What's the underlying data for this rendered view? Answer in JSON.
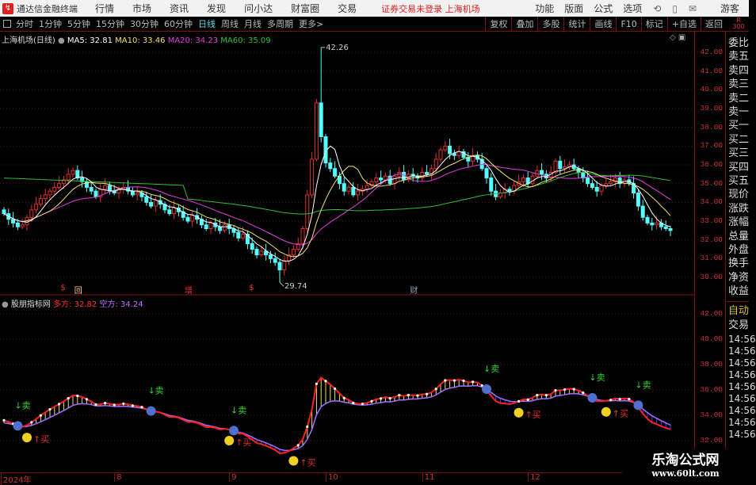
{
  "menubar": {
    "app_name": "通达信金融终端",
    "items": [
      "行情",
      "市场",
      "资讯",
      "发现",
      "问小达",
      "财富圈",
      "交易"
    ],
    "status": "证券交易未登录  上海机场",
    "right_items": [
      "功能",
      "版面",
      "公式",
      "选项"
    ],
    "user": "游客"
  },
  "periodbar": {
    "periods": [
      "分时",
      "1分钟",
      "5分钟",
      "15分钟",
      "30分钟",
      "60分钟",
      "日线",
      "周线",
      "月线",
      "多周期",
      "更多>"
    ],
    "active": "日线",
    "tools": [
      "复权",
      "叠加",
      "多股",
      "统计",
      "画线",
      "F10",
      "标记",
      "+自选",
      "返回"
    ],
    "r_label": "R",
    "r_value": "300"
  },
  "main_info": {
    "title": "上海机场(日线)",
    "ma5": "MA5: 32.81",
    "ma10": "MA10: 33.46",
    "ma20": "MA20: 34.23",
    "ma60": "MA60: 35.09"
  },
  "indicator_info": {
    "title": "股朋指标网",
    "duo": "多方: 32.82",
    "kong": "空方: 34.24"
  },
  "colors": {
    "up": "#e03030",
    "down": "#54ffff",
    "ma5": "#ffffff",
    "ma10": "#f0e070",
    "ma20": "#e040e0",
    "ma60": "#30c030",
    "duo": "#ff2020",
    "kong": "#a070ff",
    "grid": "#5a1010"
  },
  "event_markers": [
    {
      "text": "$",
      "index": 13
    },
    {
      "text": "回",
      "index": 16
    },
    {
      "text": "增",
      "index": 40
    },
    {
      "text": "$",
      "index": 54
    },
    {
      "text": "财",
      "index": 89
    }
  ],
  "right_panel": {
    "quote_labels": [
      "委比",
      "卖五",
      "卖四",
      "卖三",
      "卖二",
      "卖一",
      "买一",
      "买二",
      "买三",
      "买四",
      "买五",
      "现价",
      "涨跌",
      "涨幅",
      "总量",
      "外盘",
      "换手",
      "净资",
      "收益"
    ],
    "auto": "自动",
    "trade": "交易",
    "times": [
      "14:56",
      "14:56",
      "14:56",
      "14:56",
      "14:56",
      "14:56",
      "14:56",
      "14:56",
      "14:56"
    ]
  },
  "date_axis": [
    {
      "label": "2024年",
      "index": 0
    },
    {
      "label": "8",
      "index": 24
    },
    {
      "label": "9",
      "index": 49
    },
    {
      "label": "10",
      "index": 70
    },
    {
      "label": "11",
      "index": 91
    },
    {
      "label": "12",
      "index": 114
    }
  ],
  "watermark": {
    "line1": "乐淘公式网",
    "line2": "www.60lt.com"
  },
  "chart_data": [
    {
      "type": "candlestick",
      "series_name": "上海机场(日线)",
      "ylim": [
        29.5,
        42.8
      ],
      "y_ticks": [
        "42.00",
        "41.00",
        "40.00",
        "39.00",
        "38.00",
        "37.00",
        "36.00",
        "35.00",
        "34.00",
        "33.00",
        "32.00",
        "31.00",
        "30.00"
      ],
      "close": [
        33.4,
        33.1,
        32.9,
        32.7,
        32.8,
        33.2,
        33.6,
        33.9,
        34.2,
        34.4,
        34.6,
        34.8,
        35.0,
        35.2,
        35.5,
        35.7,
        35.3,
        35.1,
        34.8,
        34.6,
        34.3,
        34.7,
        34.9,
        34.6,
        34.5,
        34.7,
        34.8,
        34.6,
        34.4,
        34.5,
        34.3,
        34.0,
        33.8,
        34.1,
        33.9,
        33.6,
        33.4,
        33.7,
        33.5,
        33.2,
        33.0,
        33.3,
        33.1,
        32.8,
        32.6,
        32.9,
        32.7,
        32.5,
        32.8,
        32.6,
        32.4,
        32.1,
        32.3,
        31.8,
        31.5,
        31.2,
        31.4,
        31.2,
        31.0,
        30.8,
        30.4,
        30.9,
        31.2,
        31.5,
        31.8,
        32.6,
        34.4,
        36.3,
        39.3,
        37.5,
        36.1,
        35.8,
        35.4,
        35.0,
        34.6,
        34.8,
        34.4,
        34.6,
        34.7,
        34.9,
        35.1,
        35.3,
        35.2,
        35.4,
        35.0,
        35.4,
        35.6,
        35.2,
        35.5,
        35.4,
        35.3,
        35.6,
        35.5,
        35.8,
        36.3,
        36.8,
        37.0,
        36.6,
        36.5,
        36.7,
        36.4,
        36.2,
        36.5,
        36.3,
        35.8,
        35.3,
        34.6,
        34.3,
        34.5,
        34.7,
        34.6,
        34.9,
        35.1,
        35.3,
        35.0,
        35.4,
        35.7,
        35.5,
        35.3,
        35.6,
        36.2,
        35.8,
        35.9,
        36.0,
        35.8,
        35.6,
        35.3,
        35.0,
        34.8,
        34.6,
        34.9,
        35.0,
        35.1,
        35.3,
        35.0,
        35.2,
        35.0,
        34.5,
        33.8,
        33.2,
        32.9,
        32.8,
        32.9,
        32.7,
        32.6,
        32.5
      ],
      "annotations": [
        {
          "label": "42.26",
          "index": 69,
          "value": 42.26
        },
        {
          "label": "29.74",
          "index": 60,
          "value": 29.74
        }
      ],
      "moving_averages": [
        {
          "name": "MA5",
          "last": 32.81
        },
        {
          "name": "MA10",
          "last": 33.46
        },
        {
          "name": "MA20",
          "last": 34.23
        },
        {
          "name": "MA60",
          "last": 35.09
        }
      ]
    },
    {
      "type": "line",
      "series_name": "股朋指标网",
      "ylim": [
        31.5,
        43
      ],
      "y_ticks": [
        "42.00",
        "40.00",
        "38.00",
        "36.00",
        "34.00",
        "32.00"
      ],
      "series": [
        {
          "name": "多方",
          "last": 32.82
        },
        {
          "name": "空方",
          "last": 34.24
        }
      ],
      "signals": {
        "buy": "↑买",
        "sell": "↓卖"
      }
    }
  ]
}
